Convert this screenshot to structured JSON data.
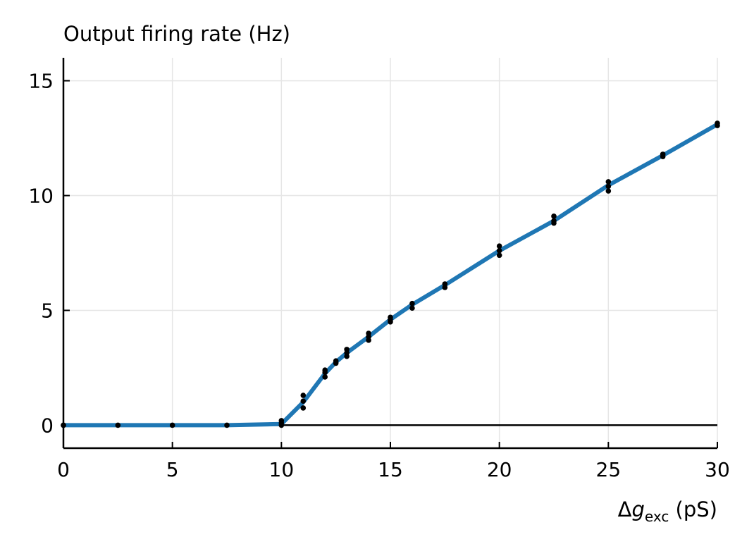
{
  "chart_data": {
    "type": "line",
    "title": "Output firing rate (Hz)",
    "xlabel": {
      "prefix": "Δ",
      "symbol": "g",
      "subscript": "exc",
      "suffix": " (pS)"
    },
    "ylabel": "",
    "xlim": [
      0,
      30
    ],
    "ylim": [
      -1,
      16
    ],
    "xticks": [
      0,
      5,
      10,
      15,
      20,
      25,
      30
    ],
    "yticks": [
      0,
      5,
      10,
      15
    ],
    "grid": true,
    "zero_line": true,
    "colors": {
      "line": "#1f77b4",
      "points": "#000000",
      "grid": "#e6e6e6"
    },
    "mean_curve": {
      "x": [
        0,
        2.5,
        5,
        7.5,
        10,
        11,
        12,
        12.5,
        13,
        14,
        15,
        16,
        17.5,
        20,
        22.5,
        25,
        27.5,
        30
      ],
      "y": [
        0,
        0,
        0,
        0,
        0.05,
        1.0,
        2.25,
        2.75,
        3.15,
        3.85,
        4.6,
        5.25,
        6.1,
        7.6,
        8.9,
        10.45,
        11.75,
        13.1
      ]
    },
    "samples": {
      "x": [
        0,
        0,
        2.5,
        5,
        7.5,
        10,
        10,
        10,
        11,
        11,
        11,
        12,
        12,
        12,
        12.5,
        12.5,
        13,
        13,
        13,
        14,
        14,
        14,
        15,
        15,
        15,
        16,
        16,
        17.5,
        17.5,
        20,
        20,
        20,
        22.5,
        22.5,
        22.5,
        25,
        25,
        25,
        27.5,
        27.5,
        30,
        30
      ],
      "y": [
        0,
        0,
        0,
        0,
        0,
        0,
        0.1,
        0.2,
        0.75,
        1.05,
        1.3,
        2.1,
        2.3,
        2.4,
        2.7,
        2.8,
        3.0,
        3.15,
        3.3,
        3.7,
        3.85,
        4.0,
        4.5,
        4.6,
        4.7,
        5.1,
        5.3,
        6.0,
        6.15,
        7.4,
        7.6,
        7.8,
        8.8,
        8.9,
        9.1,
        10.2,
        10.4,
        10.6,
        11.7,
        11.8,
        13.05,
        13.15
      ]
    }
  }
}
